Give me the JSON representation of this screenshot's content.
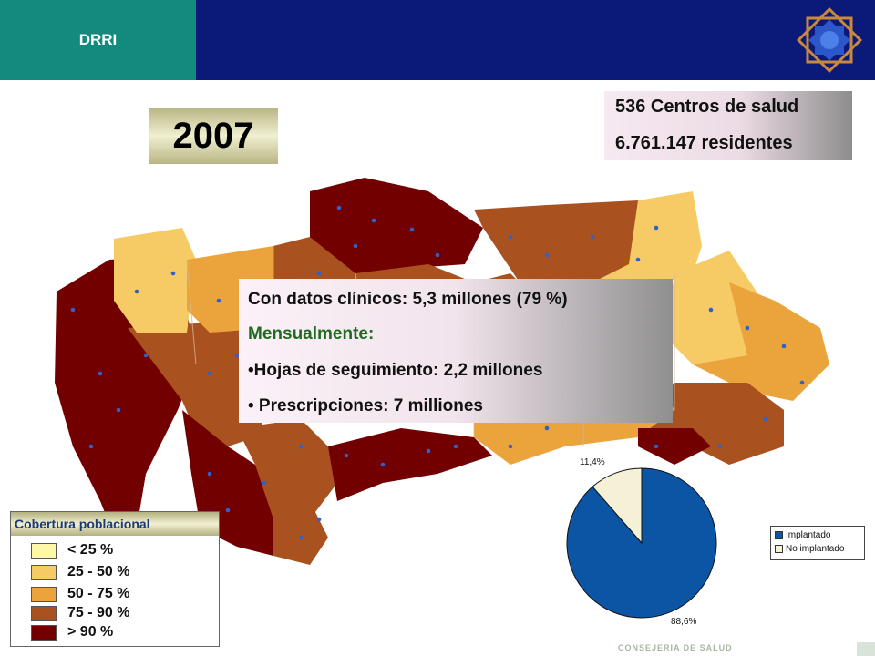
{
  "header": {
    "tab_label": "DRRI",
    "bar_color": "#0b1a78",
    "tab_color": "#138a7e",
    "logo_icon": "star-octagon-logo-icon"
  },
  "year_label": "2007",
  "stats": {
    "centers": "536 Centros de salud",
    "residents": "6.761.147 residentes"
  },
  "info": {
    "clinical": "Con datos clínicos: 5,3 millones (79 %)",
    "monthly": "Mensualmente:",
    "sheets": "•Hojas de seguimiento: 2,2 millones",
    "prescriptions": "• Prescripciones: 7 milliones"
  },
  "legend": {
    "title": "Cobertura poblacional",
    "items": [
      {
        "label": "< 25 %",
        "color": "#fff7a8"
      },
      {
        "label": "25 - 50 %",
        "color": "#f6cb65"
      },
      {
        "label": "50 - 75 %",
        "color": "#eba43b"
      },
      {
        "label": "75 - 90 %",
        "color": "#a95220"
      },
      {
        "label": "> 90 %",
        "color": "#730000"
      }
    ]
  },
  "chart_data": {
    "type": "pie",
    "slices": [
      {
        "label": "Implantado",
        "value": 88.6,
        "color": "#0c55a4",
        "text": "88,6%"
      },
      {
        "label": "No implantado",
        "value": 11.4,
        "color": "#f4f1d6",
        "text": "11,4%"
      }
    ]
  },
  "footer": {
    "text": "CONSEJERIA DE SALUD"
  }
}
